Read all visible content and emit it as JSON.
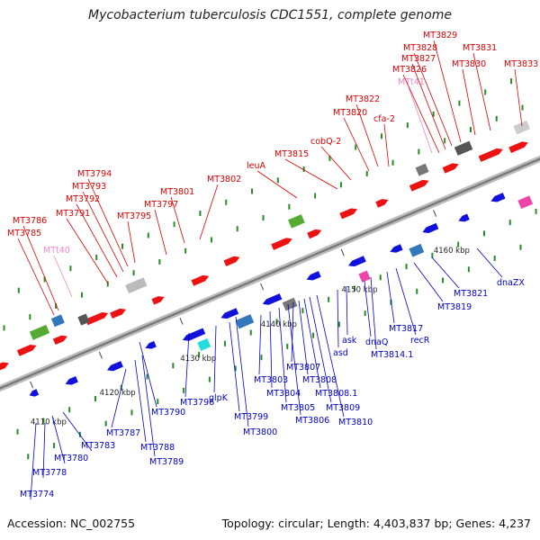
{
  "title": "Mycobacterium tuberculosis CDC1551, complete genome",
  "footer": {
    "accession": "Accession: NC_002755",
    "summary": "Topology: circular; Length: 4,403,837 bp; Genes: 4,237"
  },
  "colors": {
    "forward_label": "#dd0000",
    "reverse_label": "#0000cc",
    "rna_label": "#ee88cc",
    "forward_gene": "#ee1111",
    "reverse_gene": "#1111dd",
    "backbone": "#999999",
    "tick_label": "#222222"
  },
  "scale": [
    {
      "label": "4110 kbp"
    },
    {
      "label": "4120 kbp"
    },
    {
      "label": "4130 kbp"
    },
    {
      "label": "4140 kbp"
    },
    {
      "label": "4150 kbp"
    },
    {
      "label": "4160 kbp"
    }
  ],
  "labels_top": [
    {
      "text": "MT3774",
      "strand": "reverse"
    },
    {
      "text": "MT3778",
      "strand": "reverse"
    },
    {
      "text": "MT3780",
      "strand": "reverse"
    },
    {
      "text": "MT3783",
      "strand": "reverse"
    },
    {
      "text": "MT3785",
      "strand": "forward"
    },
    {
      "text": "MT3786",
      "strand": "forward"
    },
    {
      "text": "MTt40",
      "strand": "rna"
    },
    {
      "text": "MT3791",
      "strand": "forward"
    },
    {
      "text": "MT3792",
      "strand": "forward"
    },
    {
      "text": "MT3793",
      "strand": "forward"
    },
    {
      "text": "MT3794",
      "strand": "forward"
    },
    {
      "text": "MT3795",
      "strand": "forward"
    },
    {
      "text": "MT3797",
      "strand": "forward"
    },
    {
      "text": "MT3801",
      "strand": "forward"
    },
    {
      "text": "MT3802",
      "strand": "forward"
    },
    {
      "text": "leuA",
      "strand": "forward"
    },
    {
      "text": "MT3815",
      "strand": "forward"
    },
    {
      "text": "cobQ-2",
      "strand": "forward"
    },
    {
      "text": "MT3820",
      "strand": "forward"
    },
    {
      "text": "MT3822",
      "strand": "forward"
    },
    {
      "text": "cfa-2",
      "strand": "forward"
    },
    {
      "text": "MTt41",
      "strand": "rna"
    },
    {
      "text": "MT3826",
      "strand": "forward"
    },
    {
      "text": "MT3827",
      "strand": "forward"
    },
    {
      "text": "MT3828",
      "strand": "forward"
    },
    {
      "text": "MT3829",
      "strand": "forward"
    },
    {
      "text": "MT3830",
      "strand": "forward"
    },
    {
      "text": "MT3831",
      "strand": "forward"
    },
    {
      "text": "MT3833",
      "strand": "forward"
    }
  ],
  "labels_bottom": [
    {
      "text": "MT3787",
      "strand": "reverse"
    },
    {
      "text": "MT3788",
      "strand": "reverse"
    },
    {
      "text": "MT3789",
      "strand": "reverse"
    },
    {
      "text": "MT3790",
      "strand": "reverse"
    },
    {
      "text": "MT3796",
      "strand": "reverse"
    },
    {
      "text": "glpK",
      "strand": "reverse"
    },
    {
      "text": "MT3799",
      "strand": "reverse"
    },
    {
      "text": "MT3800",
      "strand": "reverse"
    },
    {
      "text": "MT3803",
      "strand": "reverse"
    },
    {
      "text": "MT3804",
      "strand": "reverse"
    },
    {
      "text": "MT3805",
      "strand": "reverse"
    },
    {
      "text": "MT3806",
      "strand": "reverse"
    },
    {
      "text": "MT3807",
      "strand": "reverse"
    },
    {
      "text": "MT3808",
      "strand": "reverse"
    },
    {
      "text": "MT3808.1",
      "strand": "reverse"
    },
    {
      "text": "MT3809",
      "strand": "reverse"
    },
    {
      "text": "MT3810",
      "strand": "reverse"
    },
    {
      "text": "asd",
      "strand": "reverse"
    },
    {
      "text": "ask",
      "strand": "reverse"
    },
    {
      "text": "dnaQ",
      "strand": "reverse"
    },
    {
      "text": "MT3814.1",
      "strand": "reverse"
    },
    {
      "text": "MT3817",
      "strand": "reverse"
    },
    {
      "text": "recR",
      "strand": "reverse"
    },
    {
      "text": "MT3819",
      "strand": "reverse"
    },
    {
      "text": "MT3821",
      "strand": "reverse"
    },
    {
      "text": "dnaZX",
      "strand": "reverse"
    }
  ]
}
